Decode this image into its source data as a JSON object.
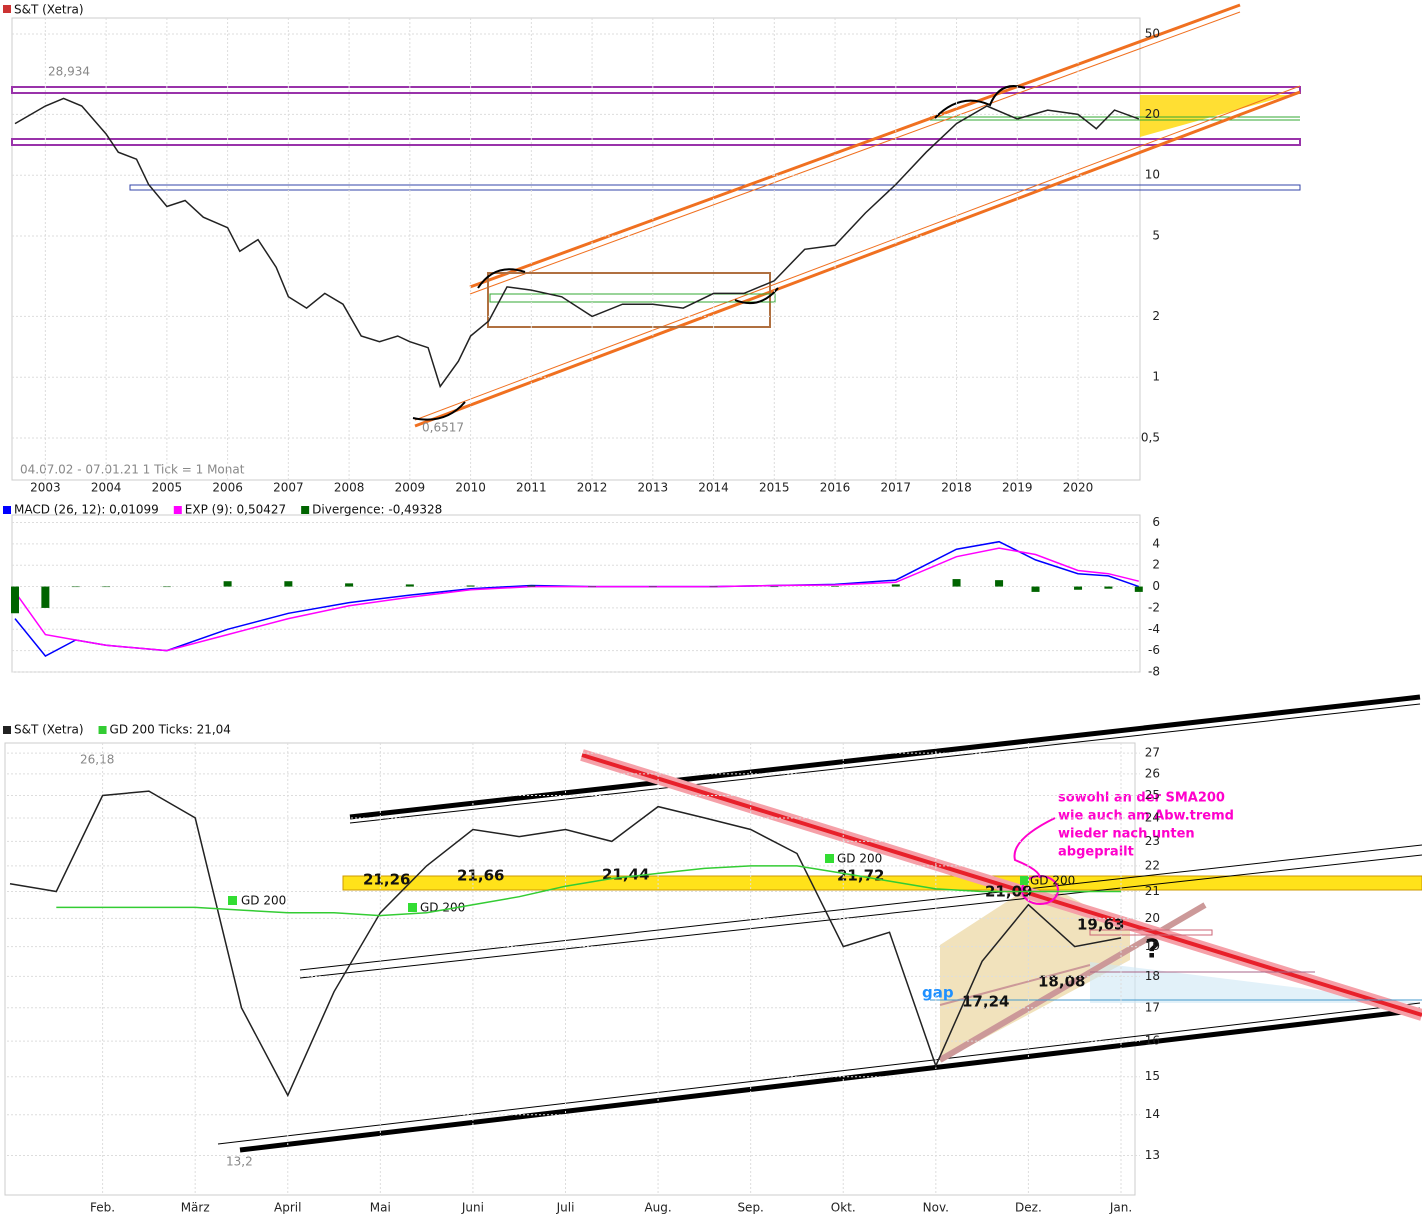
{
  "chart_data": [
    {
      "type": "line",
      "title": "S&T (Xetra)",
      "log": true,
      "grid": true,
      "color": "#222222",
      "x": [
        2002.5,
        2003.0,
        2003.3,
        2003.6,
        2004.0,
        2004.2,
        2004.5,
        2004.7,
        2005.0,
        2005.3,
        2005.6,
        2006.0,
        2006.2,
        2006.5,
        2006.8,
        2007.0,
        2007.3,
        2007.6,
        2007.9,
        2008.2,
        2008.5,
        2008.8,
        2009.0,
        2009.3,
        2009.5,
        2009.8,
        2010.0,
        2010.3,
        2010.6,
        2011.0,
        2011.5,
        2012.0,
        2012.5,
        2013.0,
        2013.5,
        2014.0,
        2014.5,
        2015.0,
        2015.5,
        2016.0,
        2016.5,
        2017.0,
        2017.5,
        2018.0,
        2018.5,
        2019.0,
        2019.5,
        2020.0,
        2020.3,
        2020.6,
        2021.0
      ],
      "values": [
        18,
        22,
        24,
        22,
        16,
        13,
        12,
        9,
        7,
        7.5,
        6.2,
        5.5,
        4.2,
        4.8,
        3.5,
        2.5,
        2.2,
        2.6,
        2.3,
        1.6,
        1.5,
        1.6,
        1.5,
        1.4,
        0.9,
        1.2,
        1.6,
        1.9,
        2.8,
        2.7,
        2.5,
        2.0,
        2.3,
        2.3,
        2.2,
        2.6,
        2.6,
        3.0,
        4.3,
        4.5,
        6.5,
        9,
        13,
        18,
        22,
        19,
        21,
        20,
        17,
        21,
        19
      ],
      "xlim": [
        2002.5,
        2021.02
      ],
      "ylim": [
        0.31,
        60
      ],
      "xticks": [
        2003,
        2004,
        2005,
        2006,
        2007,
        2008,
        2009,
        2010,
        2011,
        2012,
        2013,
        2014,
        2015,
        2016,
        2017,
        2018,
        2019,
        2020
      ],
      "yticks": [
        {
          "value": 0.5,
          "label": "0,5"
        },
        1,
        2,
        5,
        10,
        20,
        50
      ],
      "annotations": [
        "28,934",
        "0,6517",
        "04.07.02 - 07.01.21   1 Tick = 1 Monat"
      ]
    },
    {
      "type": "line",
      "grid": true,
      "x": [
        2002.5,
        2003.0,
        2003.5,
        2004.0,
        2005.0,
        2006.0,
        2007.0,
        2008.0,
        2009.0,
        2010.0,
        2011.0,
        2012.0,
        2013.0,
        2014.0,
        2015.0,
        2016.0,
        2017.0,
        2018.0,
        2018.7,
        2019.3,
        2020.0,
        2020.5,
        2021.0
      ],
      "series": [
        {
          "name": "MACD (26, 12): 0,01099",
          "color": "#0000ff",
          "values": [
            -3,
            -6.5,
            -5,
            -5.5,
            -6,
            -4,
            -2.5,
            -1.5,
            -0.8,
            -0.2,
            0.1,
            0,
            0,
            0,
            0.1,
            0.2,
            0.6,
            3.5,
            4.2,
            2.5,
            1.2,
            1.0,
            0
          ]
        },
        {
          "name": "EXP (9): 0,50427",
          "color": "#ff00ff",
          "values": [
            -0.5,
            -4.5,
            -5,
            -5.5,
            -6,
            -4.5,
            -3,
            -1.8,
            -1.0,
            -0.3,
            0,
            0,
            0,
            0,
            0.1,
            0.15,
            0.4,
            2.8,
            3.6,
            3.0,
            1.5,
            1.2,
            0.5
          ]
        },
        {
          "name": "Divergence: -0,49328",
          "color": "#006400",
          "type": "bar",
          "values": [
            -2.5,
            -2,
            0,
            0,
            0,
            0.5,
            0.5,
            0.3,
            0.2,
            0.1,
            0.1,
            0,
            0,
            0,
            0,
            0.05,
            0.2,
            0.7,
            0.6,
            -0.5,
            -0.3,
            -0.2,
            -0.5
          ]
        }
      ],
      "xlim": [
        2002.5,
        2021.02
      ],
      "ylim": [
        -8,
        6.7
      ],
      "yticks": [
        -8,
        -6,
        -4,
        -2,
        0,
        2,
        4,
        6
      ]
    },
    {
      "type": "line",
      "log": true,
      "grid": true,
      "categories": [
        null,
        null,
        "Feb.",
        null,
        "März",
        null,
        "April",
        null,
        "Mai",
        null,
        "Juni",
        null,
        "Juli",
        null,
        "Aug.",
        null,
        "Sep.",
        null,
        "Okt.",
        null,
        "Nov.",
        null,
        "Dez.",
        null,
        "Jan."
      ],
      "series": [
        {
          "name": "S&T (Xetra)",
          "color": "#222222",
          "values": [
            21.3,
            21.0,
            25,
            25.2,
            24,
            17,
            14.5,
            17.5,
            20.2,
            22,
            23.5,
            23.2,
            23.5,
            23,
            24.5,
            24,
            23.5,
            22.5,
            19,
            19.5,
            15.3,
            18.5,
            20.5,
            19,
            19.3
          ]
        },
        {
          "name": "GD 200 Ticks: 21,04",
          "color": "#33cc33",
          "values": [
            null,
            20.4,
            20.4,
            20.4,
            20.4,
            20.3,
            20.2,
            20.2,
            20.1,
            20.2,
            20.5,
            20.8,
            21.2,
            21.5,
            21.7,
            21.9,
            22.0,
            22.0,
            21.7,
            21.4,
            21.1,
            21.0,
            21.0,
            21.0,
            21.0
          ]
        }
      ],
      "ylim": [
        12.1,
        27.5
      ],
      "yticks": [
        13,
        14,
        15,
        16,
        17,
        18,
        19,
        20,
        21,
        22,
        23,
        24,
        25,
        26,
        27
      ],
      "annotations": [
        "26,18",
        "13,2",
        "21,26",
        "21,66",
        "21,44",
        "21,72",
        "21,09",
        "19,63",
        "18,08",
        "17,24",
        "gap",
        "?",
        "GD 200",
        "GD 200",
        "GD 200",
        "GD 200",
        "sowohl an der SMA200",
        "wie auch am Abw.tremd",
        "wieder nach unten",
        "abgeprallt"
      ]
    }
  ]
}
